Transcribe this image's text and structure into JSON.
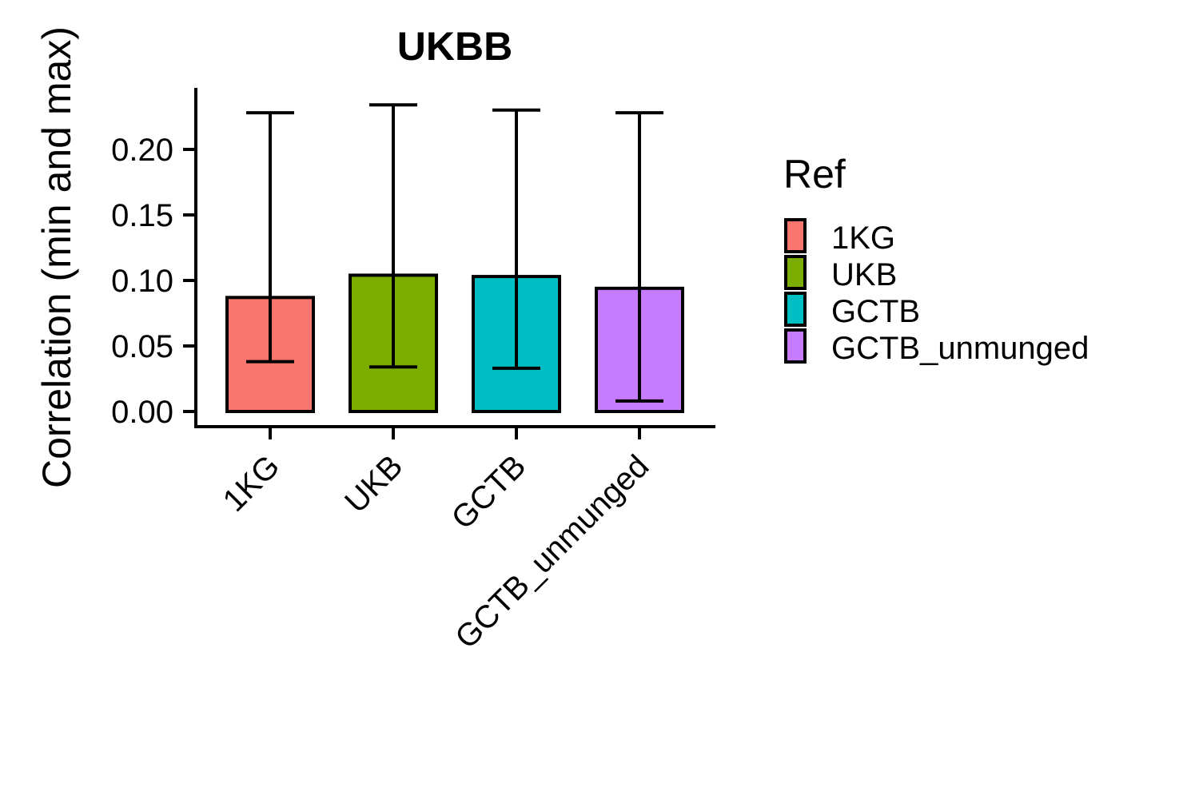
{
  "chart_data": {
    "type": "bar",
    "title": "UKBB",
    "xlabel": "",
    "ylabel": "Correlation (min and max)",
    "categories": [
      "1KG",
      "UKB",
      "GCTB",
      "GCTB_unmunged"
    ],
    "values": [
      0.087,
      0.104,
      0.103,
      0.094
    ],
    "error_min": [
      0.038,
      0.034,
      0.033,
      0.008
    ],
    "error_max": [
      0.228,
      0.234,
      0.23,
      0.228
    ],
    "colors": [
      "#F8766D",
      "#7CAE00",
      "#00BFC4",
      "#C77CFF"
    ],
    "ylim": [
      0,
      0.24
    ],
    "yticks": [
      0.0,
      0.05,
      0.1,
      0.15,
      0.2
    ],
    "ytick_labels": [
      "0.00",
      "0.05",
      "0.10",
      "0.15",
      "0.20"
    ],
    "grid": false,
    "legend": {
      "title": "Ref",
      "position": "right",
      "entries": [
        "1KG",
        "UKB",
        "GCTB",
        "GCTB_unmunged"
      ]
    }
  }
}
